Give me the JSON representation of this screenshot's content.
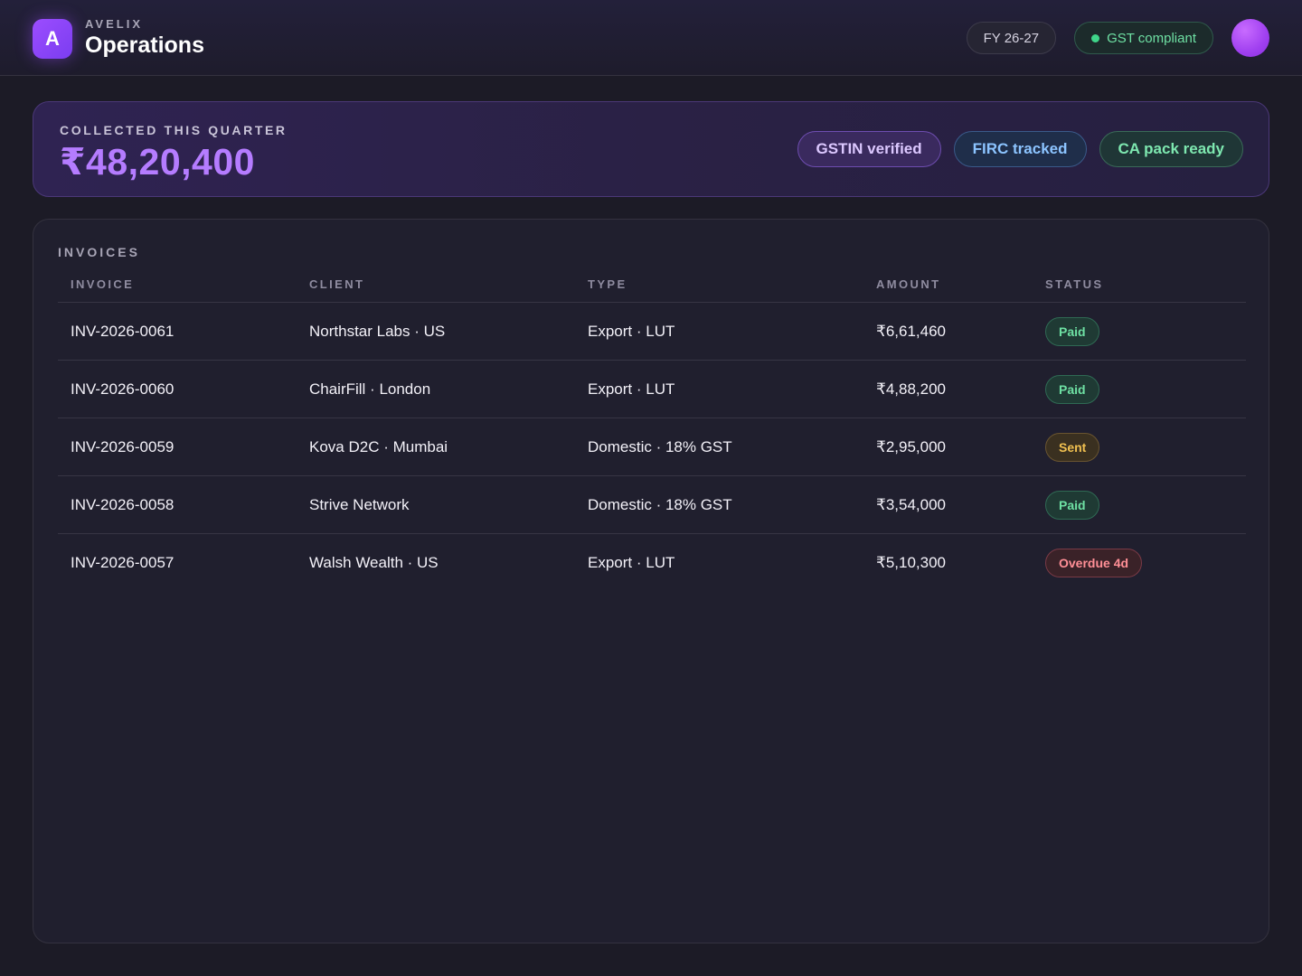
{
  "header": {
    "logo_letter": "A",
    "brand_name": "AVELIX",
    "title": "Operations",
    "fy_label": "FY 26-27",
    "compliance_label": "GST compliant"
  },
  "banner": {
    "label": "COLLECTED THIS QUARTER",
    "value": "₹48,20,400",
    "badges": [
      "GSTIN verified",
      "FIRC tracked",
      "CA pack ready"
    ]
  },
  "invoices": {
    "title": "INVOICES",
    "columns": [
      "INVOICE",
      "CLIENT",
      "TYPE",
      "AMOUNT",
      "STATUS"
    ],
    "rows": [
      {
        "invoice": "INV-2026-0061",
        "client": "Northstar Labs · US",
        "type": "Export · LUT",
        "amount": "₹6,61,460",
        "status": "Paid"
      },
      {
        "invoice": "INV-2026-0060",
        "client": "ChairFill · London",
        "type": "Export · LUT",
        "amount": "₹4,88,200",
        "status": "Paid"
      },
      {
        "invoice": "INV-2026-0059",
        "client": "Kova D2C · Mumbai",
        "type": "Domestic · 18% GST",
        "amount": "₹2,95,000",
        "status": "Sent"
      },
      {
        "invoice": "INV-2026-0058",
        "client": "Strive Network",
        "type": "Domestic · 18% GST",
        "amount": "₹3,54,000",
        "status": "Paid"
      },
      {
        "invoice": "INV-2026-0057",
        "client": "Walsh Wealth · US",
        "type": "Export · LUT",
        "amount": "₹5,10,300",
        "status": "Overdue 4d"
      }
    ]
  },
  "colors": {
    "accent": "#9c4dff",
    "paid": "#6ee0a3",
    "sent": "#f0c050",
    "overdue": "#ff8f96"
  }
}
